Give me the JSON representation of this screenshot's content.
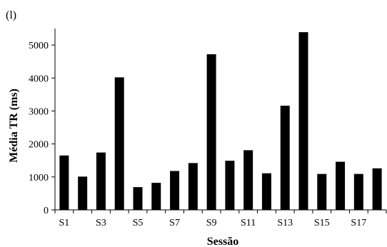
{
  "panel_label": "(l)",
  "chart_data": {
    "type": "bar",
    "title": "",
    "xlabel": "Sessão",
    "ylabel": "Média TR (ms)",
    "categories": [
      "S1",
      "S2",
      "S3",
      "S4",
      "S5",
      "S6",
      "S7",
      "S8",
      "S9",
      "S10",
      "S11",
      "S12",
      "S13",
      "S14",
      "S15",
      "S16",
      "S17",
      "S18"
    ],
    "x_tick_labels": [
      "S1",
      "",
      "S3",
      "",
      "S5",
      "",
      "S7",
      "",
      "S9",
      "",
      "S11",
      "",
      "S13",
      "",
      "S15",
      "",
      "S17",
      ""
    ],
    "values": [
      1650,
      1010,
      1740,
      4020,
      690,
      820,
      1180,
      1420,
      4720,
      1490,
      1810,
      1110,
      3160,
      5390,
      1090,
      1460,
      1090,
      1260
    ],
    "ylim": [
      0,
      5500
    ],
    "y_ticks": [
      0,
      1000,
      2000,
      3000,
      4000,
      5000
    ],
    "grid": false,
    "legend": "none",
    "bar_color": "#000000"
  }
}
